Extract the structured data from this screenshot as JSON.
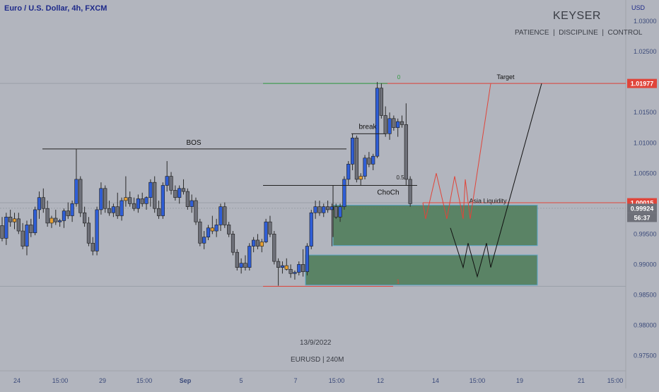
{
  "header": {
    "symbol_title": "Euro / U.S. Dollar, 4h, FXCM",
    "currency": "USD"
  },
  "watermark": {
    "brand": "KEYSER",
    "tagline": "PATIENCE  |  DISCIPLINE  |  CONTROL",
    "date": "13/9/2022",
    "symbol": "EURUSD | 240M"
  },
  "colors": {
    "background": "#b2b5be",
    "bull": "#2f5ed6",
    "bear": "#6e7079",
    "doji": "#e8a030",
    "wick": "#2a2a2a",
    "zone_fill": "#4a7a56",
    "zone_border": "#5aa6c8",
    "red_line": "#e0453a",
    "green_line": "#2e9a3e",
    "price_label_red": "#e0453a",
    "price_label_gray": "#6e7079",
    "axis_text": "#3b4a7a"
  },
  "chart_data": {
    "type": "candlestick",
    "symbol": "EURUSD",
    "timeframe": "4h",
    "y_axis": {
      "ticks": [
        "1.03000",
        "1.02500",
        "1.02000",
        "1.01500",
        "1.01000",
        "1.00500",
        "1.00000",
        "0.99500",
        "0.99000",
        "0.98500",
        "0.98000",
        "0.97500"
      ],
      "ylim": [
        0.9725,
        1.0335
      ]
    },
    "x_axis": {
      "ticks": [
        "24",
        "15:00",
        "29",
        "15:00",
        "Sep",
        "5",
        "7",
        "15:00",
        "12",
        "14",
        "15:00",
        "19",
        "21",
        "15:00"
      ]
    },
    "price_labels": [
      {
        "name": "level-high",
        "value": "1.01977",
        "price": 1.01977,
        "style": "red"
      },
      {
        "name": "level-mid",
        "value": "1.00015",
        "price": 1.00015,
        "style": "red"
      },
      {
        "name": "last-price",
        "value": "0.99924",
        "price": 0.99924,
        "style": "gray"
      },
      {
        "name": "countdown",
        "value": "56:37",
        "price": 0.99924,
        "style": "gray-sub"
      }
    ],
    "candles": [
      {
        "o": 0.9964,
        "h": 0.9978,
        "l": 0.9938,
        "c": 0.9943
      },
      {
        "o": 0.9943,
        "h": 0.9985,
        "l": 0.9932,
        "c": 0.9978
      },
      {
        "o": 0.9978,
        "h": 0.999,
        "l": 0.9962,
        "c": 0.997
      },
      {
        "o": 0.997,
        "h": 0.9985,
        "l": 0.9958,
        "c": 0.9975
      },
      {
        "o": 0.9975,
        "h": 0.9985,
        "l": 0.995,
        "c": 0.9955
      },
      {
        "o": 0.9955,
        "h": 0.9968,
        "l": 0.9925,
        "c": 0.993
      },
      {
        "o": 0.993,
        "h": 0.9972,
        "l": 0.9915,
        "c": 0.9965
      },
      {
        "o": 0.9965,
        "h": 0.9975,
        "l": 0.9945,
        "c": 0.9952
      },
      {
        "o": 0.9952,
        "h": 0.9995,
        "l": 0.9948,
        "c": 0.999
      },
      {
        "o": 0.999,
        "h": 1.002,
        "l": 0.9975,
        "c": 1.001
      },
      {
        "o": 1.001,
        "h": 1.0025,
        "l": 0.9985,
        "c": 0.9992
      },
      {
        "o": 0.9992,
        "h": 1.0005,
        "l": 0.9962,
        "c": 0.9968
      },
      {
        "o": 0.9968,
        "h": 0.998,
        "l": 0.996,
        "c": 0.9976
      },
      {
        "o": 0.9976,
        "h": 0.999,
        "l": 0.9965,
        "c": 0.997
      },
      {
        "o": 0.997,
        "h": 0.9975,
        "l": 0.9962,
        "c": 0.9972
      },
      {
        "o": 0.9972,
        "h": 0.9992,
        "l": 0.996,
        "c": 0.9988
      },
      {
        "o": 0.9988,
        "h": 1.0002,
        "l": 0.9975,
        "c": 0.998
      },
      {
        "o": 0.998,
        "h": 1.0005,
        "l": 0.997,
        "c": 1.0
      },
      {
        "o": 1.0,
        "h": 1.009,
        "l": 0.9995,
        "c": 1.004
      },
      {
        "o": 1.004,
        "h": 1.0045,
        "l": 0.9978,
        "c": 0.9985
      },
      {
        "o": 0.9985,
        "h": 0.9995,
        "l": 0.9962,
        "c": 0.9968
      },
      {
        "o": 0.9968,
        "h": 0.9978,
        "l": 0.993,
        "c": 0.9935
      },
      {
        "o": 0.9935,
        "h": 0.9945,
        "l": 0.9915,
        "c": 0.9922
      },
      {
        "o": 0.9922,
        "h": 0.9995,
        "l": 0.9915,
        "c": 0.999
      },
      {
        "o": 0.999,
        "h": 1.0035,
        "l": 0.9982,
        "c": 1.0025
      },
      {
        "o": 1.0025,
        "h": 1.003,
        "l": 0.9985,
        "c": 0.9992
      },
      {
        "o": 0.9992,
        "h": 1.0005,
        "l": 0.998,
        "c": 0.9985
      },
      {
        "o": 0.9985,
        "h": 1.0,
        "l": 0.9978,
        "c": 0.9995
      },
      {
        "o": 0.9995,
        "h": 1.0018,
        "l": 0.9975,
        "c": 0.998
      },
      {
        "o": 0.998,
        "h": 1.001,
        "l": 0.9972,
        "c": 1.0005
      },
      {
        "o": 1.0005,
        "h": 1.0045,
        "l": 0.9995,
        "c": 1.001
      },
      {
        "o": 1.001,
        "h": 1.002,
        "l": 0.9995,
        "c": 1.0
      },
      {
        "o": 1.0,
        "h": 1.001,
        "l": 0.9988,
        "c": 0.9992
      },
      {
        "o": 0.9992,
        "h": 1.0015,
        "l": 0.9985,
        "c": 1.0008
      },
      {
        "o": 1.0008,
        "h": 1.0018,
        "l": 0.9995,
        "c": 1.0
      },
      {
        "o": 1.0,
        "h": 1.0012,
        "l": 0.999,
        "c": 1.001
      },
      {
        "o": 1.001,
        "h": 1.004,
        "l": 0.9995,
        "c": 1.0035
      },
      {
        "o": 1.0035,
        "h": 1.0045,
        "l": 0.9985,
        "c": 0.9992
      },
      {
        "o": 0.9992,
        "h": 1.0005,
        "l": 0.9975,
        "c": 0.998
      },
      {
        "o": 0.998,
        "h": 1.0035,
        "l": 0.9975,
        "c": 1.003
      },
      {
        "o": 1.003,
        "h": 1.007,
        "l": 1.002,
        "c": 1.0045
      },
      {
        "o": 1.0045,
        "h": 1.0052,
        "l": 1.0015,
        "c": 1.0022
      },
      {
        "o": 1.0022,
        "h": 1.003,
        "l": 1.0005,
        "c": 1.001
      },
      {
        "o": 1.001,
        "h": 1.003,
        "l": 1.0,
        "c": 1.0025
      },
      {
        "o": 1.0025,
        "h": 1.004,
        "l": 1.0015,
        "c": 1.002
      },
      {
        "o": 1.002,
        "h": 1.0025,
        "l": 0.999,
        "c": 0.9995
      },
      {
        "o": 0.9995,
        "h": 1.0015,
        "l": 0.9985,
        "c": 1.0005
      },
      {
        "o": 1.0005,
        "h": 1.001,
        "l": 0.9965,
        "c": 0.997
      },
      {
        "o": 0.997,
        "h": 0.9975,
        "l": 0.993,
        "c": 0.9935
      },
      {
        "o": 0.9935,
        "h": 0.9955,
        "l": 0.9925,
        "c": 0.9945
      },
      {
        "o": 0.9945,
        "h": 0.9965,
        "l": 0.994,
        "c": 0.996
      },
      {
        "o": 0.996,
        "h": 0.998,
        "l": 0.995,
        "c": 0.9955
      },
      {
        "o": 0.9955,
        "h": 0.9975,
        "l": 0.9945,
        "c": 0.9965
      },
      {
        "o": 0.9965,
        "h": 1.0,
        "l": 0.9955,
        "c": 0.9995
      },
      {
        "o": 0.9995,
        "h": 1.0002,
        "l": 0.996,
        "c": 0.9965
      },
      {
        "o": 0.9965,
        "h": 0.997,
        "l": 0.9945,
        "c": 0.995
      },
      {
        "o": 0.995,
        "h": 0.9955,
        "l": 0.9915,
        "c": 0.992
      },
      {
        "o": 0.992,
        "h": 0.9925,
        "l": 0.989,
        "c": 0.9895
      },
      {
        "o": 0.9895,
        "h": 0.991,
        "l": 0.9885,
        "c": 0.9902
      },
      {
        "o": 0.9902,
        "h": 0.9915,
        "l": 0.989,
        "c": 0.9895
      },
      {
        "o": 0.9895,
        "h": 0.9935,
        "l": 0.989,
        "c": 0.993
      },
      {
        "o": 0.993,
        "h": 0.9945,
        "l": 0.992,
        "c": 0.994
      },
      {
        "o": 0.994,
        "h": 0.995,
        "l": 0.9925,
        "c": 0.993
      },
      {
        "o": 0.993,
        "h": 0.9942,
        "l": 0.992,
        "c": 0.9937
      },
      {
        "o": 0.9937,
        "h": 0.9975,
        "l": 0.9935,
        "c": 0.997
      },
      {
        "o": 0.997,
        "h": 0.998,
        "l": 0.9945,
        "c": 0.995
      },
      {
        "o": 0.995,
        "h": 0.9955,
        "l": 0.99,
        "c": 0.9905
      },
      {
        "o": 0.9905,
        "h": 0.991,
        "l": 0.9865,
        "c": 0.9895
      },
      {
        "o": 0.9895,
        "h": 0.9905,
        "l": 0.9885,
        "c": 0.9898
      },
      {
        "o": 0.9898,
        "h": 0.991,
        "l": 0.989,
        "c": 0.9892
      },
      {
        "o": 0.9892,
        "h": 0.99,
        "l": 0.9878,
        "c": 0.9885
      },
      {
        "o": 0.9885,
        "h": 0.989,
        "l": 0.9875,
        "c": 0.9887
      },
      {
        "o": 0.9887,
        "h": 0.9905,
        "l": 0.9882,
        "c": 0.99
      },
      {
        "o": 0.99,
        "h": 0.9925,
        "l": 0.988,
        "c": 0.9888
      },
      {
        "o": 0.9888,
        "h": 0.9935,
        "l": 0.9882,
        "c": 0.993
      },
      {
        "o": 0.993,
        "h": 0.999,
        "l": 0.9925,
        "c": 0.9985
      },
      {
        "o": 0.9985,
        "h": 1.0005,
        "l": 0.9975,
        "c": 0.9995
      },
      {
        "o": 0.9995,
        "h": 1.0005,
        "l": 0.998,
        "c": 0.9985
      },
      {
        "o": 0.9985,
        "h": 1.0,
        "l": 0.9978,
        "c": 0.9995
      },
      {
        "o": 0.9995,
        "h": 1.0005,
        "l": 0.9985,
        "c": 0.999
      },
      {
        "o": 0.999,
        "h": 1.0,
        "l": 0.993,
        "c": 0.9995
      },
      {
        "o": 0.9995,
        "h": 1.0,
        "l": 0.9975,
        "c": 0.9978
      },
      {
        "o": 0.9978,
        "h": 1.0,
        "l": 0.997,
        "c": 0.9995
      },
      {
        "o": 0.9995,
        "h": 1.0045,
        "l": 0.999,
        "c": 1.004
      },
      {
        "o": 1.004,
        "h": 1.007,
        "l": 1.003,
        "c": 1.0065
      },
      {
        "o": 1.0065,
        "h": 1.0115,
        "l": 1.0055,
        "c": 1.0108
      },
      {
        "o": 1.0108,
        "h": 1.0112,
        "l": 1.0035,
        "c": 1.004
      },
      {
        "o": 1.004,
        "h": 1.005,
        "l": 1.003,
        "c": 1.0045
      },
      {
        "o": 1.0045,
        "h": 1.008,
        "l": 1.004,
        "c": 1.0075
      },
      {
        "o": 1.0075,
        "h": 1.0085,
        "l": 1.006,
        "c": 1.0065
      },
      {
        "o": 1.0065,
        "h": 1.0082,
        "l": 1.0055,
        "c": 1.0078
      },
      {
        "o": 1.0078,
        "h": 1.02,
        "l": 1.0075,
        "c": 1.019
      },
      {
        "o": 1.019,
        "h": 1.0198,
        "l": 1.014,
        "c": 1.0145
      },
      {
        "o": 1.0145,
        "h": 1.016,
        "l": 1.011,
        "c": 1.0115
      },
      {
        "o": 1.0115,
        "h": 1.015,
        "l": 1.0105,
        "c": 1.014
      },
      {
        "o": 1.014,
        "h": 1.0145,
        "l": 1.012,
        "c": 1.0125
      },
      {
        "o": 1.0125,
        "h": 1.014,
        "l": 1.011,
        "c": 1.0135
      },
      {
        "o": 1.0135,
        "h": 1.0145,
        "l": 1.0125,
        "c": 1.013
      },
      {
        "o": 1.013,
        "h": 1.0165,
        "l": 1.003,
        "c": 1.004
      },
      {
        "o": 1.004,
        "h": 1.0045,
        "l": 0.9995,
        "c": 1.0
      }
    ],
    "annotations": {
      "bos": {
        "label": "BOS",
        "price": 1.009
      },
      "break": {
        "label": "break",
        "price": 1.0115
      },
      "choch": {
        "label": "ChoCh",
        "price": 1.003
      },
      "fib_0": {
        "label": "0",
        "price": 1.01977
      },
      "fib_05": {
        "label": "0.5",
        "price": 1.0035
      },
      "fib_1": {
        "label": "1",
        "price": 0.9864
      },
      "target": {
        "label": "Target",
        "price": 1.01977
      },
      "asia": {
        "label": "Asia Liquidity",
        "price": 1.0
      }
    },
    "zones": [
      {
        "name": "demand-zone-upper",
        "top": 0.99975,
        "bottom": 0.9931
      },
      {
        "name": "demand-zone-lower",
        "top": 0.99155,
        "bottom": 0.9866
      }
    ],
    "projections": {
      "red": [
        [
          1.0,
          0.9975
        ],
        [
          1.005,
          0.9975
        ],
        [
          1.0045,
          0.9975
        ],
        [
          1.004,
          1.0
        ],
        [
          1.01977,
          1.01977
        ]
      ],
      "black": [
        [
          0.996,
          0.9895
        ],
        [
          0.9935,
          0.988
        ],
        [
          0.9935,
          0.9895
        ],
        [
          1.01977
        ]
      ]
    }
  }
}
